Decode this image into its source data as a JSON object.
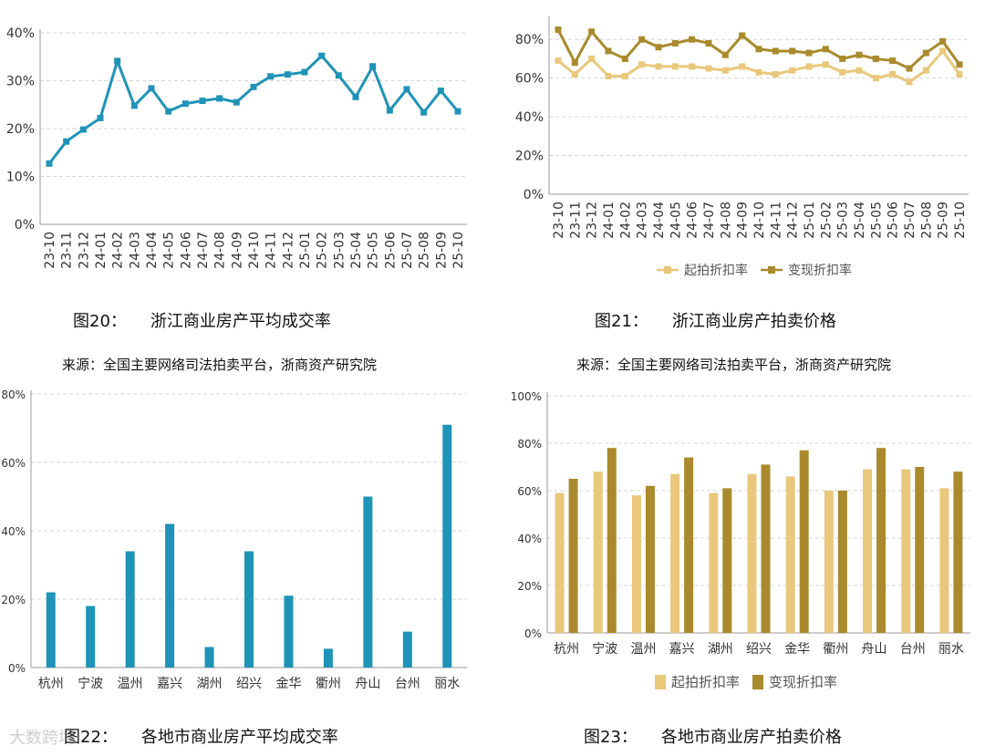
{
  "colors": {
    "teal": "#1f93b8",
    "light_gold": "#e9c87c",
    "dark_gold": "#a98a2c",
    "grid": "#d6d6d6"
  },
  "captions": {
    "fig20_num": "图20：",
    "fig20_title": "浙江商业房产平均成交率",
    "fig21_num": "图21：",
    "fig21_title": "浙江商业房产拍卖价格",
    "fig22_num": "图22：",
    "fig22_title": "各地市商业房产平均成交率",
    "fig23_num": "图23：",
    "fig23_title": "各地市商业房产拍卖价格",
    "source_left": "来源：全国主要网络司法拍卖平台，浙商资产研究院",
    "source_right": "来源：全国主要网络司法拍卖平台，浙商资产研究院"
  },
  "legends": {
    "chart21_series1": "起拍折扣率",
    "chart21_series2": "变现折扣率",
    "chart23_series1": "起拍折扣率",
    "chart23_series2": "变现折扣率"
  },
  "watermark": "大数跨境",
  "chart_data": [
    {
      "id": "fig20",
      "type": "line",
      "title": "浙江商业房产平均成交率",
      "x": [
        "23-10",
        "23-11",
        "23-12",
        "24-01",
        "24-02",
        "24-03",
        "24-04",
        "24-05",
        "24-06",
        "24-07",
        "24-08",
        "24-09",
        "24-10",
        "24-11",
        "24-12",
        "25-01",
        "25-02",
        "25-03",
        "25-04",
        "25-05",
        "25-06",
        "25-07",
        "25-08",
        "25-09",
        "25-10"
      ],
      "series": [
        {
          "values": [
            12.7,
            17.3,
            19.8,
            22.2,
            34.1,
            24.8,
            28.4,
            23.6,
            25.2,
            25.8,
            26.3,
            25.5,
            28.7,
            30.9,
            31.3,
            31.8,
            35.2,
            31.1,
            26.6,
            33.0,
            23.8,
            28.2,
            23.4,
            27.9,
            23.6
          ]
        }
      ],
      "yticks": [
        "0%",
        "10%",
        "20%",
        "30%",
        "40%"
      ],
      "ylim": [
        0,
        40
      ]
    },
    {
      "id": "fig21",
      "type": "line",
      "title": "浙江商业房产拍卖价格",
      "x": [
        "23-10",
        "23-11",
        "23-12",
        "24-01",
        "24-02",
        "24-03",
        "24-04",
        "24-05",
        "24-06",
        "24-07",
        "24-08",
        "24-09",
        "24-10",
        "24-11",
        "24-12",
        "25-01",
        "25-02",
        "25-03",
        "25-04",
        "25-05",
        "25-06",
        "25-07",
        "25-08",
        "25-09",
        "25-10"
      ],
      "series": [
        {
          "name": "起拍折扣率",
          "values": [
            69,
            62,
            70,
            61,
            61,
            67,
            66,
            66,
            66,
            65,
            64,
            66,
            63,
            62,
            64,
            66,
            67,
            63,
            64,
            60,
            62,
            58,
            64,
            74,
            62
          ]
        },
        {
          "name": "变现折扣率",
          "values": [
            85,
            68,
            84,
            74,
            70,
            80,
            76,
            78,
            80,
            78,
            72,
            82,
            75,
            74,
            74,
            73,
            75,
            70,
            72,
            70,
            69,
            65,
            73,
            79,
            67
          ]
        }
      ],
      "yticks": [
        "0%",
        "20%",
        "40%",
        "60%",
        "80%"
      ],
      "ylim": [
        0,
        90
      ]
    },
    {
      "id": "fig22",
      "type": "bar",
      "title": "各地市商业房产平均成交率",
      "categories": [
        "杭州",
        "宁波",
        "温州",
        "嘉兴",
        "湖州",
        "绍兴",
        "金华",
        "衢州",
        "舟山",
        "台州",
        "丽水"
      ],
      "values": [
        22,
        18,
        34,
        42,
        6,
        34,
        21,
        5.5,
        50,
        10.5,
        71
      ],
      "yticks": [
        "0%",
        "20%",
        "40%",
        "60%",
        "80%"
      ],
      "ylim": [
        0,
        80
      ]
    },
    {
      "id": "fig23",
      "type": "bar",
      "title": "各地市商业房产拍卖价格",
      "categories": [
        "杭州",
        "宁波",
        "温州",
        "嘉兴",
        "湖州",
        "绍兴",
        "金华",
        "衢州",
        "舟山",
        "台州",
        "丽水"
      ],
      "series": [
        {
          "name": "起拍折扣率",
          "values": [
            59,
            68,
            58,
            67,
            59,
            67,
            66,
            60,
            69,
            69,
            61
          ]
        },
        {
          "name": "变现折扣率",
          "values": [
            65,
            78,
            62,
            74,
            61,
            71,
            77,
            60,
            78,
            70,
            68
          ]
        }
      ],
      "yticks": [
        "0%",
        "20%",
        "40%",
        "60%",
        "80%",
        "100%"
      ],
      "ylim": [
        0,
        100
      ]
    }
  ]
}
